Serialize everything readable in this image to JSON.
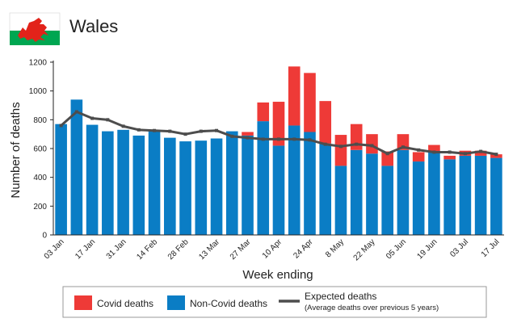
{
  "chart_data": {
    "type": "bar",
    "title": "Wales",
    "xlabel": "Week ending",
    "ylabel": "Number of deaths",
    "ylim": [
      0,
      1200
    ],
    "yticks": [
      0,
      200,
      400,
      600,
      800,
      1000,
      1200
    ],
    "categories": [
      "03 Jan",
      "10 Jan",
      "17 Jan",
      "24 Jan",
      "31 Jan",
      "07 Feb",
      "14 Feb",
      "21 Feb",
      "28 Feb",
      "06 Mar",
      "13 Mar",
      "20 Mar",
      "27 Mar",
      "03 Apr",
      "10 Apr",
      "17 Apr",
      "24 Apr",
      "01 May",
      "8 May",
      "15 May",
      "22 May",
      "29 May",
      "05 Jun",
      "12 Jun",
      "19 Jun",
      "26 Jun",
      "03 Jul",
      "10 Jul",
      "17 Jul"
    ],
    "tick_labels": [
      "03 Jan",
      "17 Jan",
      "31 Jan",
      "14 Feb",
      "28 Feb",
      "13 Mar",
      "27 Mar",
      "10 Apr",
      "24 Apr",
      "8 May",
      "22 May",
      "05 Jun",
      "19 Jun",
      "03 Jul",
      "17 Jul"
    ],
    "bars_stacked": true,
    "series": [
      {
        "name": "Non-Covid deaths",
        "color": "#0a7dc5",
        "values": [
          770,
          940,
          765,
          720,
          730,
          690,
          725,
          675,
          650,
          655,
          670,
          720,
          690,
          790,
          620,
          760,
          715,
          635,
          480,
          590,
          565,
          480,
          590,
          510,
          575,
          525,
          550,
          550,
          535
        ]
      },
      {
        "name": "Covid deaths",
        "color": "#ee3a37",
        "values": [
          0,
          0,
          0,
          0,
          0,
          0,
          0,
          0,
          0,
          0,
          0,
          0,
          25,
          130,
          305,
          410,
          410,
          295,
          215,
          180,
          135,
          100,
          110,
          65,
          50,
          25,
          35,
          35,
          25
        ]
      },
      {
        "name": "Expected deaths",
        "type": "line",
        "color": "#4d4d4d",
        "values": [
          760,
          855,
          810,
          800,
          755,
          730,
          725,
          720,
          700,
          720,
          725,
          685,
          675,
          665,
          665,
          665,
          660,
          630,
          615,
          630,
          620,
          565,
          610,
          590,
          575,
          575,
          565,
          580,
          560
        ]
      }
    ],
    "legend": {
      "position": "bottom",
      "covid": "Covid deaths",
      "non_covid": "Non-Covid deaths",
      "expected": "Expected deaths",
      "expected_note": "(Average deaths over previous 5 years)"
    },
    "colors": {
      "covid": "#ee3a37",
      "non_covid": "#0a7dc5",
      "expected": "#4d4d4d",
      "flag_white": "#ffffff",
      "flag_green": "#00a651",
      "dragon": "#e2231a"
    }
  }
}
